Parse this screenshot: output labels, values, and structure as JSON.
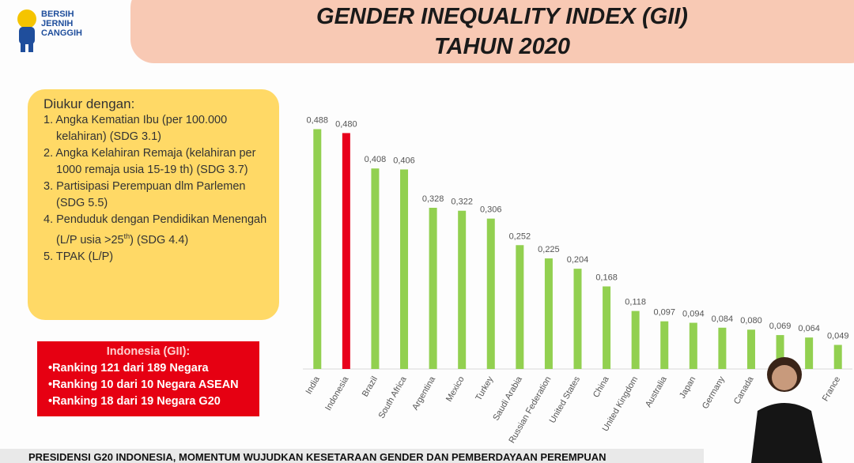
{
  "logo": {
    "lines": [
      "BERSIH",
      "JERNIH",
      "CANGGIH"
    ]
  },
  "header": {
    "title": "GENDER INEQUALITY INDEX (GII)",
    "subtitle": "TAHUN 2020"
  },
  "info_box": {
    "heading": "Diukur dengan:",
    "items": [
      "1. Angka Kematian Ibu (per 100.000 kelahiran) (SDG 3.1)",
      "2. Angka Kelahiran Remaja (kelahiran per 1000 remaja usia 15-19 th) (SDG 3.7)",
      "3. Partisipasi Perempuan dlm Parlemen (SDG 5.5)",
      {
        "before": "4. Penduduk dengan Pendidikan Menengah (L/P usia >25",
        "sup": "th",
        "after": ") (SDG 4.4)"
      },
      "5. TPAK (L/P)"
    ]
  },
  "indonesia_box": {
    "heading": "Indonesia (GII):",
    "items": [
      "•Ranking 121 dari 189 Negara",
      "•Ranking 10 dari 10 Negara ASEAN",
      "•Ranking 18 dari 19 Negara G20"
    ]
  },
  "footer": {
    "text": "PRESIDENSI G20 INDONESIA, MOMENTUM WUJUDKAN KESETARAAN GENDER DAN PEMBERDAYAAN PEREMPUAN"
  },
  "chart_data": {
    "type": "bar",
    "categories": [
      "India",
      "Indonesia",
      "Brazil",
      "South Africa",
      "Argentina",
      "Mexico",
      "Turkey",
      "Saudi Arabia",
      "Russian Federation",
      "United States",
      "China",
      "United Kingdom",
      "Australia",
      "Japan",
      "Germany",
      "Canada",
      null,
      null,
      "France"
    ],
    "values": [
      0.488,
      0.48,
      0.408,
      0.406,
      0.328,
      0.322,
      0.306,
      0.252,
      0.225,
      0.204,
      0.168,
      0.118,
      0.097,
      0.094,
      0.084,
      0.08,
      0.069,
      0.064,
      0.049
    ],
    "value_labels": [
      "0,488",
      "0,480",
      "0,408",
      "0,406",
      "0,328",
      "0,322",
      "0,306",
      "0,252",
      "0,225",
      "0,204",
      "0,168",
      "0,118",
      "0,097",
      "0,094",
      "0,084",
      "0,080",
      "0,069",
      "0,064",
      "0,049"
    ],
    "colors": [
      "#92d050",
      "#e8001c",
      "#92d050",
      "#92d050",
      "#92d050",
      "#92d050",
      "#92d050",
      "#92d050",
      "#92d050",
      "#92d050",
      "#92d050",
      "#92d050",
      "#92d050",
      "#92d050",
      "#92d050",
      "#92d050",
      "#92d050",
      "#92d050",
      "#92d050"
    ],
    "ylim": [
      0,
      0.5
    ]
  }
}
